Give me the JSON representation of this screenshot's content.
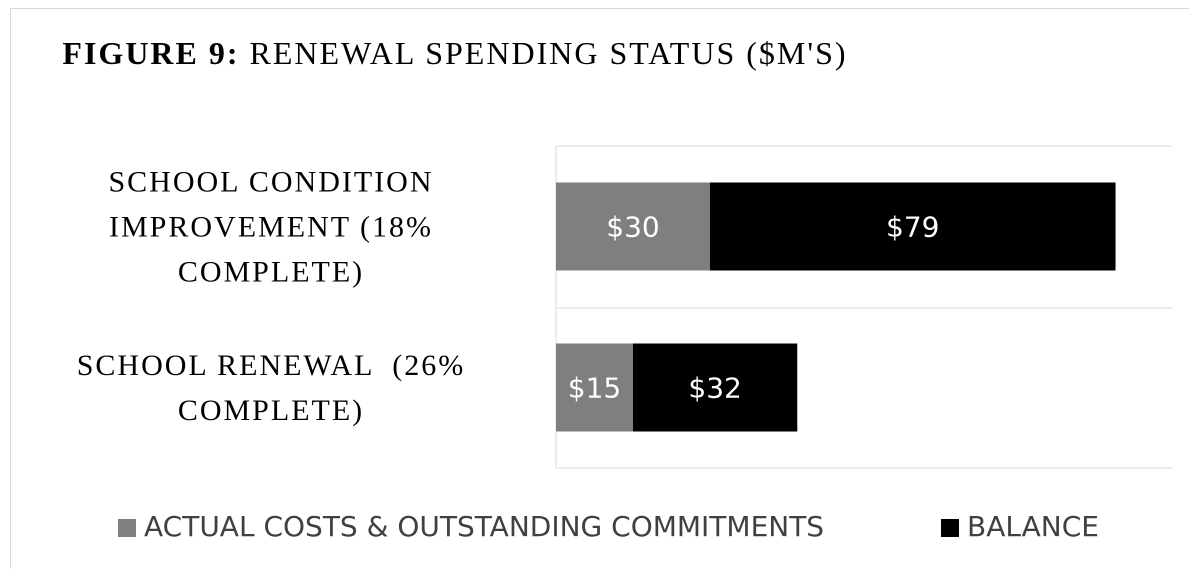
{
  "chart_data": {
    "type": "stacked_barh",
    "title": {
      "label": "FIGURE 9:",
      "text": "RENEWAL SPENDING STATUS ($M'S)"
    },
    "categories": [
      "SCHOOL CONDITION IMPROVEMENT (18% COMPLETE)",
      "SCHOOL RENEWAL  (26% COMPLETE)"
    ],
    "series": [
      {
        "name": "ACTUAL COSTS & OUTSTANDING COMMITMENTS",
        "color": "#7f7f7f",
        "values": [
          30,
          15
        ],
        "value_labels": [
          "$30",
          "$15"
        ]
      },
      {
        "name": "BALANCE",
        "color": "#000000",
        "values": [
          79,
          32
        ],
        "value_labels": [
          "$79",
          "$32"
        ]
      }
    ],
    "xlim": [
      0,
      120
    ],
    "legend": "bottom"
  }
}
